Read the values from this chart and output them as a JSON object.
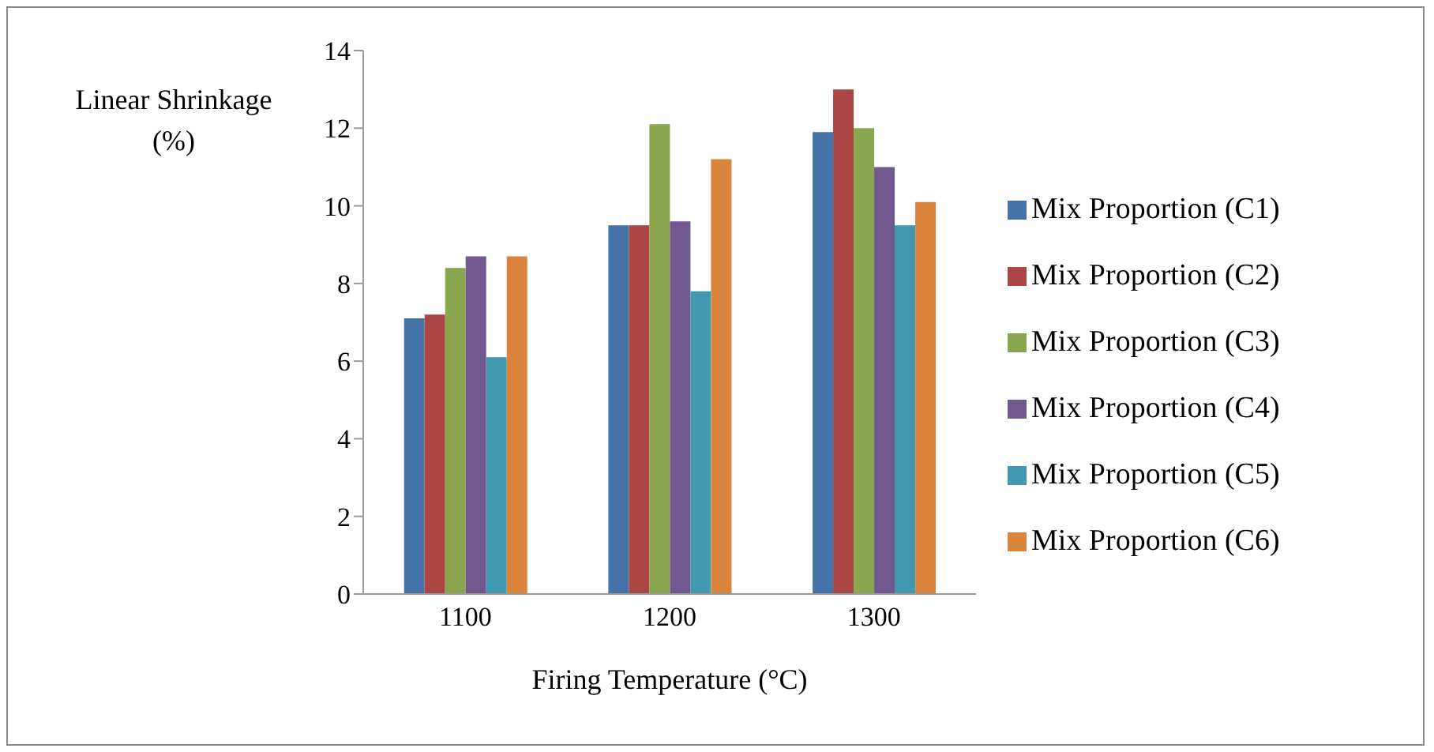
{
  "chart_data": {
    "type": "bar",
    "xlabel": "Firing Temperature (°C)",
    "ylabel": "Linear Shrinkage (%)",
    "categories": [
      "1100",
      "1200",
      "1300"
    ],
    "series": [
      {
        "name": "Mix Proportion (C1)",
        "color": "#4572a7",
        "values": [
          7.1,
          9.5,
          11.9
        ]
      },
      {
        "name": "Mix Proportion (C2)",
        "color": "#aa4643",
        "values": [
          7.2,
          9.5,
          13.0
        ]
      },
      {
        "name": "Mix Proportion (C3)",
        "color": "#89a54e",
        "values": [
          8.4,
          12.1,
          12.0
        ]
      },
      {
        "name": "Mix Proportion (C4)",
        "color": "#71588f",
        "values": [
          8.7,
          9.6,
          11.0
        ]
      },
      {
        "name": "Mix Proportion (C5)",
        "color": "#4198af",
        "values": [
          6.1,
          7.8,
          9.5
        ]
      },
      {
        "name": "Mix Proportion (C6)",
        "color": "#db843d",
        "values": [
          8.7,
          11.2,
          10.1
        ]
      }
    ],
    "ylim": [
      0,
      14
    ],
    "yticks": [
      0,
      2,
      4,
      6,
      8,
      10,
      12,
      14
    ],
    "grid": false,
    "legend": "right"
  }
}
